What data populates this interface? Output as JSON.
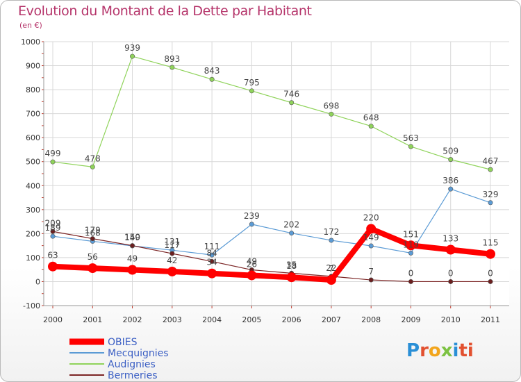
{
  "title": "Evolution du Montant de la Dette par Habitant",
  "subtitle": "(en €)",
  "logo": {
    "text": "Proxiti",
    "letters": [
      "P",
      "r",
      "o",
      "x",
      "i",
      "ti"
    ]
  },
  "chart_data": {
    "type": "line",
    "x": [
      "2000",
      "2001",
      "2002",
      "2003",
      "2004",
      "2005",
      "2006",
      "2007",
      "2008",
      "2009",
      "2010",
      "2011"
    ],
    "ylim": [
      -100,
      1000
    ],
    "yticks": [
      "-100",
      "0",
      "100",
      "200",
      "300",
      "400",
      "500",
      "600",
      "700",
      "800",
      "900",
      "1000"
    ],
    "ytick_values": [
      -100,
      0,
      100,
      200,
      300,
      400,
      500,
      600,
      700,
      800,
      900,
      1000
    ],
    "grid": true,
    "legend_position": "bottom-left",
    "series": [
      {
        "name": "OBIES",
        "color": "#ff0000",
        "width": 8,
        "values": [
          63,
          56,
          49,
          42,
          34,
          26,
          18,
          7,
          220,
          151,
          133,
          115
        ],
        "labels": [
          "63",
          "56",
          "49",
          "42",
          "34",
          "26",
          "18",
          "7",
          "220",
          "151",
          "133",
          "115"
        ]
      },
      {
        "name": "Mecquignies",
        "color": "#5b9bd5",
        "width": 1.2,
        "values": [
          189,
          168,
          149,
          131,
          111,
          239,
          202,
          172,
          149,
          119,
          386,
          329
        ],
        "labels": [
          "189",
          "168",
          "149",
          "131",
          "111",
          "239",
          "202",
          "172",
          "149",
          "119",
          "386",
          "329"
        ]
      },
      {
        "name": "Audignies",
        "color": "#8fd35a",
        "width": 1.2,
        "values": [
          499,
          478,
          939,
          893,
          843,
          795,
          746,
          698,
          648,
          563,
          509,
          467
        ],
        "labels": [
          "499",
          "478",
          "939",
          "893",
          "843",
          "795",
          "746",
          "698",
          "648",
          "563",
          "509",
          "467"
        ]
      },
      {
        "name": "Bermeries",
        "color": "#7b2424",
        "width": 1.2,
        "values": [
          209,
          179,
          150,
          117,
          84,
          49,
          35,
          22,
          7,
          0,
          0,
          0
        ],
        "labels": [
          "209",
          "179",
          "150",
          "117",
          "84",
          "49",
          "35",
          "22",
          "7",
          "0",
          "0",
          "0"
        ]
      }
    ]
  }
}
